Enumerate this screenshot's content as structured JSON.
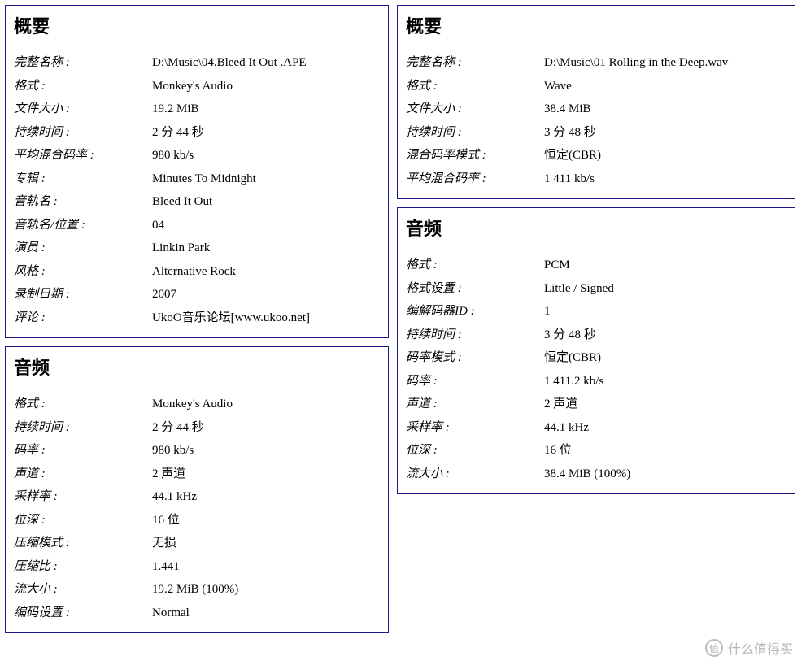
{
  "left": {
    "overview": {
      "title": "概要",
      "rows": [
        {
          "label": "完整名称 :",
          "value": "D:\\Music\\04.Bleed It Out .APE"
        },
        {
          "label": "格式 :",
          "value": "Monkey's Audio"
        },
        {
          "label": "文件大小 :",
          "value": "19.2 MiB"
        },
        {
          "label": "持续时间 :",
          "value": "2 分  44 秒"
        },
        {
          "label": "平均混合码率 :",
          "value": "980 kb/s"
        },
        {
          "label": "专辑 :",
          "value": "Minutes To Midnight"
        },
        {
          "label": "音轨名 :",
          "value": "Bleed It Out"
        },
        {
          "label": "音轨名/位置 :",
          "value": "04"
        },
        {
          "label": "演员 :",
          "value": "Linkin Park"
        },
        {
          "label": "风格 :",
          "value": "Alternative Rock"
        },
        {
          "label": "录制日期 :",
          "value": "2007"
        },
        {
          "label": "评论 :",
          "value": "UkoO音乐论坛[www.ukoo.net]"
        }
      ]
    },
    "audio": {
      "title": "音频",
      "rows": [
        {
          "label": "格式 :",
          "value": "Monkey's Audio"
        },
        {
          "label": "持续时间 :",
          "value": "2 分  44 秒"
        },
        {
          "label": "码率 :",
          "value": "980 kb/s"
        },
        {
          "label": "声道 :",
          "value": "2 声道"
        },
        {
          "label": "采样率 :",
          "value": "44.1 kHz"
        },
        {
          "label": "位深 :",
          "value": "16 位"
        },
        {
          "label": "压缩模式 :",
          "value": "无损"
        },
        {
          "label": "压缩比 :",
          "value": "1.441"
        },
        {
          "label": "流大小 :",
          "value": "19.2 MiB (100%)"
        },
        {
          "label": "编码设置 :",
          "value": "Normal"
        }
      ]
    }
  },
  "right": {
    "overview": {
      "title": "概要",
      "rows": [
        {
          "label": "完整名称 :",
          "value": "D:\\Music\\01 Rolling in the Deep.wav"
        },
        {
          "label": "格式 :",
          "value": "Wave"
        },
        {
          "label": "文件大小 :",
          "value": "38.4 MiB"
        },
        {
          "label": "持续时间 :",
          "value": "3 分  48 秒"
        },
        {
          "label": "混合码率模式 :",
          "value": "恒定(CBR)"
        },
        {
          "label": "平均混合码率 :",
          "value": "1 411 kb/s"
        }
      ]
    },
    "audio": {
      "title": "音频",
      "rows": [
        {
          "label": "格式 :",
          "value": "PCM"
        },
        {
          "label": "格式设置 :",
          "value": "Little / Signed"
        },
        {
          "label": "编解码器ID :",
          "value": "1"
        },
        {
          "label": "持续时间 :",
          "value": "3 分  48 秒"
        },
        {
          "label": "码率模式 :",
          "value": "恒定(CBR)"
        },
        {
          "label": "码率 :",
          "value": "1 411.2 kb/s"
        },
        {
          "label": "声道 :",
          "value": "2 声道"
        },
        {
          "label": "采样率 :",
          "value": "44.1 kHz"
        },
        {
          "label": "位深 :",
          "value": "16 位"
        },
        {
          "label": "流大小 :",
          "value": "38.4 MiB (100%)"
        }
      ]
    }
  },
  "watermark": {
    "icon": "值",
    "text": "什么值得买"
  }
}
